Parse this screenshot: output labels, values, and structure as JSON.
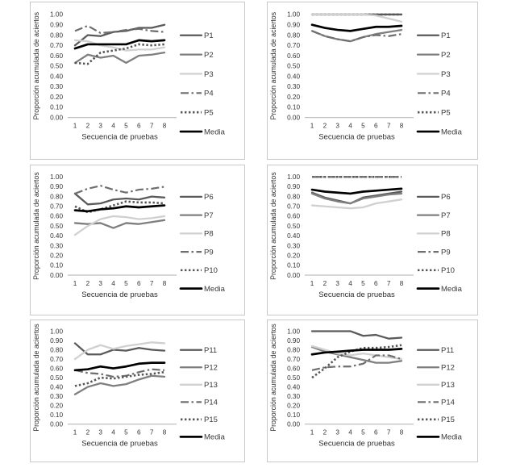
{
  "figure": {
    "background": "#ffffff",
    "panel_border_color": "#c8c8c8",
    "baseline_color": "#bfbfbf",
    "tick_text_color": "#343434",
    "axis_title_color": "#2e2e2e",
    "legend_text_color": "#3a3a3a"
  },
  "styles": {
    "solid_dark": {
      "color": "#5a5a5a",
      "width": 2.3,
      "dash": "",
      "cap": "round"
    },
    "solid_mid": {
      "color": "#7f7f7f",
      "width": 2.3,
      "dash": "",
      "cap": "round"
    },
    "solid_light": {
      "color": "#d0d0d0",
      "width": 2.3,
      "dash": "",
      "cap": "round"
    },
    "dashed": {
      "color": "#6e6e6e",
      "width": 2.2,
      "dash": "10 3.5 2.5 3.5",
      "cap": "butt"
    },
    "dotted": {
      "color": "#565656",
      "width": 2.6,
      "dash": "2.4 2.6",
      "cap": "butt"
    },
    "media": {
      "color": "#000000",
      "width": 2.7,
      "dash": "",
      "cap": "round"
    }
  },
  "axes": {
    "ylabel": "Proporción acumulada de aciertos",
    "xlabel": "Secuencia de pruebas",
    "yticks": [
      "1.00",
      "0.90",
      "0.80",
      "0.70",
      "0.60",
      "0.50",
      "0.40",
      "0.30",
      "0.20",
      "0.10",
      "0.00"
    ],
    "xticks": [
      "1",
      "2",
      "3",
      "4",
      "5",
      "6",
      "7",
      "8"
    ]
  },
  "chart_data": [
    {
      "type": "line",
      "panel": "top-left",
      "x": [
        1,
        2,
        3,
        4,
        5,
        6,
        7,
        8
      ],
      "ylim": [
        0,
        1
      ],
      "xlabel": "Secuencia de pruebas",
      "ylabel": "Proporción acumulada de aciertos",
      "legend_position": "right",
      "grid": false,
      "series": [
        {
          "name": "P1",
          "style": "solid_dark",
          "values": [
            0.7,
            0.8,
            0.79,
            0.83,
            0.84,
            0.87,
            0.87,
            0.9
          ]
        },
        {
          "name": "P2",
          "style": "solid_mid",
          "values": [
            0.53,
            0.61,
            0.58,
            0.6,
            0.53,
            0.6,
            0.61,
            0.63
          ]
        },
        {
          "name": "P3",
          "style": "solid_light",
          "values": [
            0.75,
            0.74,
            0.7,
            0.68,
            0.65,
            0.66,
            0.66,
            0.68
          ]
        },
        {
          "name": "P4",
          "style": "dashed",
          "values": [
            0.84,
            0.89,
            0.82,
            0.83,
            0.85,
            0.86,
            0.84,
            0.83
          ]
        },
        {
          "name": "P5",
          "style": "dotted",
          "values": [
            0.53,
            0.52,
            0.63,
            0.65,
            0.67,
            0.71,
            0.7,
            0.71
          ]
        },
        {
          "name": "Media",
          "style": "media",
          "values": [
            0.67,
            0.71,
            0.71,
            0.71,
            0.71,
            0.75,
            0.74,
            0.75
          ]
        }
      ]
    },
    {
      "type": "line",
      "panel": "top-right",
      "x": [
        1,
        2,
        3,
        4,
        5,
        6,
        7,
        8
      ],
      "ylim": [
        0,
        1
      ],
      "xlabel": "Secuencia de pruebas",
      "ylabel": "Proporción acumulada de aciertos",
      "legend_position": "right",
      "grid": false,
      "series": [
        {
          "name": "P1",
          "style": "solid_dark",
          "values": [
            1.0,
            1.0,
            1.0,
            1.0,
            1.0,
            1.0,
            1.0,
            1.0
          ]
        },
        {
          "name": "P2",
          "style": "solid_mid",
          "values": [
            0.84,
            0.79,
            0.76,
            0.74,
            0.78,
            0.81,
            0.83,
            0.85
          ]
        },
        {
          "name": "P3",
          "style": "solid_light",
          "values": [
            1.0,
            1.0,
            1.0,
            1.0,
            1.0,
            0.99,
            0.96,
            0.93
          ]
        },
        {
          "name": "P4",
          "style": "dashed",
          "values": [
            0.84,
            0.79,
            0.76,
            0.74,
            0.78,
            0.8,
            0.79,
            0.81
          ]
        },
        {
          "name": "P5",
          "style": "dotted",
          "values": [
            1.0,
            1.0,
            1.0,
            1.0,
            1.0,
            1.0,
            1.0,
            1.0
          ],
          "z": -1
        },
        {
          "name": "Media",
          "style": "media",
          "values": [
            0.9,
            0.87,
            0.85,
            0.84,
            0.86,
            0.88,
            0.88,
            0.89
          ]
        }
      ]
    },
    {
      "type": "line",
      "panel": "middle-left",
      "x": [
        1,
        2,
        3,
        4,
        5,
        6,
        7,
        8
      ],
      "ylim": [
        0,
        1
      ],
      "xlabel": "Secuencia de pruebas",
      "ylabel": "Proporción acumulada de aciertos",
      "legend_position": "right",
      "grid": false,
      "series": [
        {
          "name": "P6",
          "style": "solid_dark",
          "values": [
            0.83,
            0.72,
            0.73,
            0.77,
            0.78,
            0.77,
            0.8,
            0.79
          ]
        },
        {
          "name": "P7",
          "style": "solid_mid",
          "values": [
            0.53,
            0.52,
            0.53,
            0.48,
            0.53,
            0.52,
            0.54,
            0.56
          ]
        },
        {
          "name": "P8",
          "style": "solid_light",
          "values": [
            0.41,
            0.5,
            0.57,
            0.6,
            0.59,
            0.57,
            0.58,
            0.6
          ]
        },
        {
          "name": "P9",
          "style": "dashed",
          "values": [
            0.83,
            0.88,
            0.91,
            0.87,
            0.84,
            0.87,
            0.88,
            0.9
          ]
        },
        {
          "name": "P10",
          "style": "dotted",
          "values": [
            0.7,
            0.64,
            0.67,
            0.71,
            0.75,
            0.74,
            0.74,
            0.73
          ]
        },
        {
          "name": "Media",
          "style": "media",
          "values": [
            0.66,
            0.65,
            0.67,
            0.68,
            0.7,
            0.69,
            0.7,
            0.71
          ]
        }
      ]
    },
    {
      "type": "line",
      "panel": "middle-right",
      "x": [
        1,
        2,
        3,
        4,
        5,
        6,
        7,
        8
      ],
      "ylim": [
        0,
        1
      ],
      "xlabel": "Secuencia de pruebas",
      "ylabel": "Proporción acumulada de aciertos",
      "legend_position": "right",
      "grid": false,
      "series": [
        {
          "name": "P6",
          "style": "solid_dark",
          "values": [
            0.84,
            0.79,
            0.76,
            0.73,
            0.79,
            0.81,
            0.83,
            0.85
          ]
        },
        {
          "name": "P7",
          "style": "solid_mid",
          "values": [
            0.83,
            0.78,
            0.75,
            0.73,
            0.78,
            0.8,
            0.82,
            0.83
          ]
        },
        {
          "name": "P8",
          "style": "solid_light",
          "values": [
            0.71,
            0.7,
            0.69,
            0.68,
            0.69,
            0.73,
            0.75,
            0.77
          ]
        },
        {
          "name": "P9",
          "style": "dashed",
          "values": [
            1.0,
            1.0,
            1.0,
            1.0,
            1.0,
            1.0,
            1.0,
            1.0
          ]
        },
        {
          "name": "P10",
          "style": "dotted",
          "values": [
            1.0,
            1.0,
            1.0,
            1.0,
            1.0,
            1.0,
            1.0,
            1.0
          ],
          "z": -1
        },
        {
          "name": "Media",
          "style": "media",
          "values": [
            0.87,
            0.85,
            0.84,
            0.83,
            0.85,
            0.86,
            0.87,
            0.88
          ]
        }
      ]
    },
    {
      "type": "line",
      "panel": "bottom-left",
      "x": [
        1,
        2,
        3,
        4,
        5,
        6,
        7,
        8
      ],
      "ylim": [
        0,
        1
      ],
      "xlabel": "Secuencia de pruebas",
      "ylabel": "Proporción acumulada de aciertos",
      "legend_position": "right",
      "grid": false,
      "series": [
        {
          "name": "P11",
          "style": "solid_dark",
          "values": [
            0.87,
            0.75,
            0.75,
            0.8,
            0.79,
            0.82,
            0.8,
            0.79
          ]
        },
        {
          "name": "P12",
          "style": "solid_mid",
          "values": [
            0.32,
            0.4,
            0.44,
            0.41,
            0.43,
            0.48,
            0.52,
            0.51
          ]
        },
        {
          "name": "P13",
          "style": "solid_light",
          "values": [
            0.7,
            0.8,
            0.85,
            0.81,
            0.84,
            0.86,
            0.88,
            0.87
          ]
        },
        {
          "name": "P14",
          "style": "dashed",
          "values": [
            0.58,
            0.55,
            0.54,
            0.51,
            0.52,
            0.56,
            0.59,
            0.58
          ]
        },
        {
          "name": "P15",
          "style": "dotted",
          "values": [
            0.41,
            0.44,
            0.5,
            0.49,
            0.51,
            0.53,
            0.54,
            0.56
          ]
        },
        {
          "name": "Media",
          "style": "media",
          "values": [
            0.58,
            0.59,
            0.62,
            0.6,
            0.62,
            0.65,
            0.66,
            0.66
          ]
        }
      ]
    },
    {
      "type": "line",
      "panel": "bottom-right",
      "x": [
        1,
        2,
        3,
        4,
        5,
        6,
        7,
        8
      ],
      "ylim": [
        0,
        1
      ],
      "xlabel": "Secuencia de pruebas",
      "ylabel": "Proporción acumulada de aciertos",
      "legend_position": "right",
      "grid": false,
      "series": [
        {
          "name": "P11",
          "style": "solid_dark",
          "values": [
            1.0,
            1.0,
            1.0,
            1.0,
            0.95,
            0.96,
            0.92,
            0.93
          ]
        },
        {
          "name": "P12",
          "style": "solid_mid",
          "values": [
            0.83,
            0.78,
            0.75,
            0.72,
            0.69,
            0.66,
            0.66,
            0.68
          ]
        },
        {
          "name": "P13",
          "style": "solid_light",
          "values": [
            0.84,
            0.8,
            0.76,
            0.74,
            0.76,
            0.74,
            0.72,
            0.7
          ]
        },
        {
          "name": "P14",
          "style": "dashed",
          "values": [
            0.58,
            0.61,
            0.62,
            0.62,
            0.65,
            0.74,
            0.74,
            0.7
          ]
        },
        {
          "name": "P15",
          "style": "dotted",
          "values": [
            0.5,
            0.6,
            0.72,
            0.78,
            0.82,
            0.82,
            0.83,
            0.85
          ]
        },
        {
          "name": "Media",
          "style": "media",
          "values": [
            0.75,
            0.77,
            0.78,
            0.79,
            0.8,
            0.8,
            0.8,
            0.81
          ]
        }
      ]
    }
  ]
}
